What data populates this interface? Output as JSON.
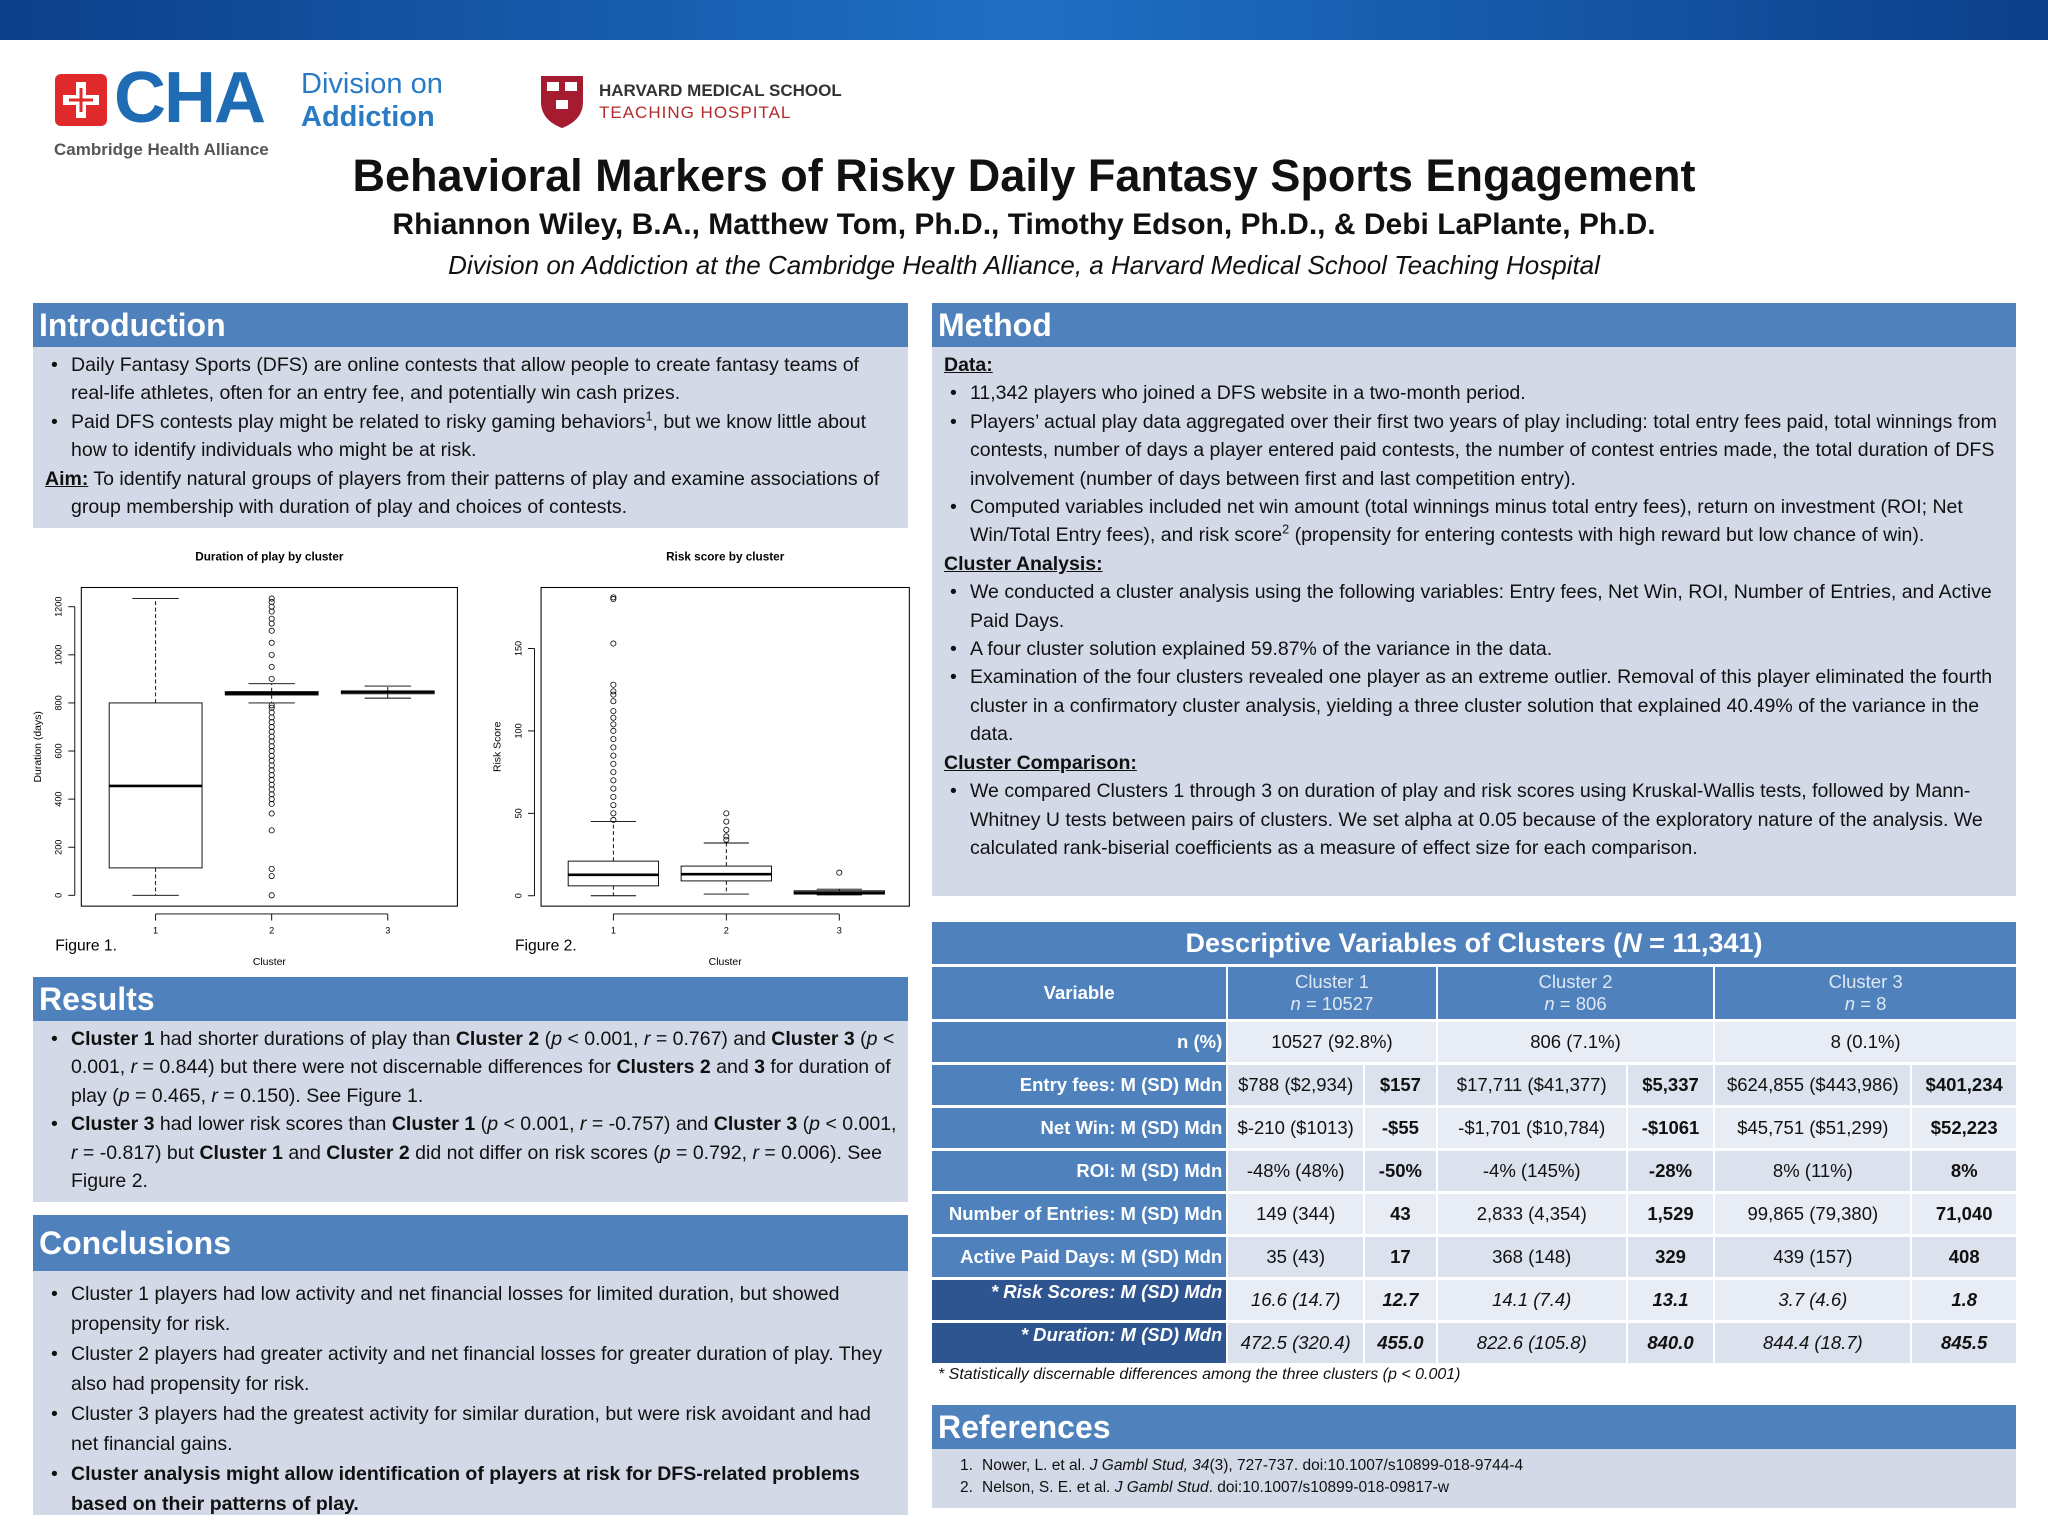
{
  "header": {
    "cha_mark": "CHA",
    "division_line1": "Division on",
    "division_line2": "Addiction",
    "cha_name": "Cambridge Health Alliance",
    "hms_line1": "HARVARD MEDICAL SCHOOL",
    "hms_line2": "TEACHING HOSPITAL",
    "title": "Behavioral Markers of Risky Daily Fantasy Sports Engagement",
    "authors": "Rhiannon Wiley, B.A., Matthew Tom, Ph.D., Timothy Edson, Ph.D., & Debi LaPlante, Ph.D.",
    "affiliation": "Division on Addiction at the Cambridge Health Alliance, a Harvard Medical School Teaching Hospital"
  },
  "introduction": {
    "heading": "Introduction",
    "items": [
      {
        "type": "bullet",
        "runs": [
          {
            "text": "Daily Fantasy Sports (DFS) are online contests that allow people to create fantasy teams of real-life athletes, often for an entry fee, and potentially win cash prizes."
          }
        ]
      },
      {
        "type": "bullet",
        "runs": [
          {
            "text": "Paid DFS contests play might be related to risky gaming behaviors"
          },
          {
            "text": "1",
            "style": "sup"
          },
          {
            "text": ", but we know little about how to identify individuals who might be at risk."
          }
        ]
      },
      {
        "type": "paragraph",
        "runs": [
          {
            "text": "Aim:",
            "style": "bu"
          },
          {
            "text": " To identify natural groups of players from their patterns of play and examine associations of group membership with duration of play and choices of contests."
          }
        ]
      }
    ]
  },
  "method": {
    "heading": "Method",
    "items": [
      {
        "type": "subheading",
        "runs": [
          {
            "text": "Data:"
          }
        ]
      },
      {
        "type": "bullet",
        "runs": [
          {
            "text": "11,342 players who joined a DFS website in a two-month period."
          }
        ]
      },
      {
        "type": "bullet",
        "runs": [
          {
            "text": "Players’ actual play data aggregated over their first two years of play including: total entry fees paid, total winnings from contests, number of days a player entered paid contests, the number of contest entries made, the total duration of DFS involvement (number of days between first and last competition entry)."
          }
        ]
      },
      {
        "type": "bullet",
        "runs": [
          {
            "text": "Computed variables included net win amount (total winnings minus total entry fees), return on investment (ROI; Net Win/Total Entry fees), and risk score"
          },
          {
            "text": "2",
            "style": "sup"
          },
          {
            "text": " (propensity for entering contests with high reward but low chance of win)."
          }
        ]
      },
      {
        "type": "subheading",
        "runs": [
          {
            "text": "Cluster Analysis:"
          }
        ]
      },
      {
        "type": "bullet",
        "runs": [
          {
            "text": "We conducted a cluster analysis using the following variables: Entry fees, Net Win, ROI, Number of Entries, and Active Paid Days."
          }
        ]
      },
      {
        "type": "bullet",
        "runs": [
          {
            "text": "A four cluster solution explained 59.87% of the variance in the data."
          }
        ]
      },
      {
        "type": "bullet",
        "runs": [
          {
            "text": "Examination of the four clusters revealed one player as an extreme outlier. Removal of this player eliminated the fourth cluster in a confirmatory cluster analysis, yielding a three cluster solution that explained 40.49% of the variance in the data."
          }
        ]
      },
      {
        "type": "subheading",
        "runs": [
          {
            "text": "Cluster Comparison:"
          }
        ]
      },
      {
        "type": "bullet",
        "runs": [
          {
            "text": "We compared Clusters 1 through 3 on duration of play and risk scores using Kruskal-Wallis tests, followed by Mann-Whitney U tests between pairs of clusters. We set alpha at 0.05 because of the exploratory nature of the analysis. We calculated rank-biserial coefficients as a measure of effect size for each comparison."
          }
        ]
      }
    ]
  },
  "results": {
    "heading": "Results",
    "items": [
      {
        "type": "bullet",
        "runs": [
          {
            "text": "Cluster 1",
            "style": "b"
          },
          {
            "text": " had shorter durations of play than "
          },
          {
            "text": "Cluster 2",
            "style": "b"
          },
          {
            "text": " ("
          },
          {
            "text": "p",
            "style": "i"
          },
          {
            "text": "  < 0.001, "
          },
          {
            "text": "r",
            "style": "i"
          },
          {
            "text": " = 0.767) and "
          },
          {
            "text": "Cluster 3",
            "style": "b"
          },
          {
            "text": " ("
          },
          {
            "text": "p",
            "style": "i"
          },
          {
            "text": " < 0.001, "
          },
          {
            "text": "r",
            "style": "i"
          },
          {
            "text": " = 0.844) but there were not discernable differences for "
          },
          {
            "text": "Clusters 2",
            "style": "b"
          },
          {
            "text": " and "
          },
          {
            "text": "3",
            "style": "b"
          },
          {
            "text": " for duration of play ("
          },
          {
            "text": "p",
            "style": "i"
          },
          {
            "text": " = 0.465, "
          },
          {
            "text": "r",
            "style": "i"
          },
          {
            "text": " = 0.150). See Figure 1."
          }
        ]
      },
      {
        "type": "bullet",
        "runs": [
          {
            "text": "Cluster 3",
            "style": "b"
          },
          {
            "text": " had lower risk scores than "
          },
          {
            "text": "Cluster 1",
            "style": "b"
          },
          {
            "text": " ("
          },
          {
            "text": "p",
            "style": "i"
          },
          {
            "text": " < 0.001, "
          },
          {
            "text": "r",
            "style": "i"
          },
          {
            "text": " = -0.757) and "
          },
          {
            "text": "Cluster 3",
            "style": "b"
          },
          {
            "text": " ("
          },
          {
            "text": "p",
            "style": "i"
          },
          {
            "text": " < 0.001, "
          },
          {
            "text": "r",
            "style": "i"
          },
          {
            "text": " = -0.817) but "
          },
          {
            "text": "Cluster 1",
            "style": "b"
          },
          {
            "text": " and "
          },
          {
            "text": "Cluster 2",
            "style": "b"
          },
          {
            "text": " did not differ on risk scores ("
          },
          {
            "text": "p",
            "style": "i"
          },
          {
            "text": " = 0.792, "
          },
          {
            "text": "r",
            "style": "i"
          },
          {
            "text": " = 0.006). See Figure 2."
          }
        ]
      }
    ]
  },
  "conclusions": {
    "heading": "Conclusions",
    "items": [
      {
        "type": "bullet",
        "runs": [
          {
            "text": "Cluster 1 players had low activity and net financial losses for limited duration, but showed propensity for risk."
          }
        ]
      },
      {
        "type": "bullet",
        "runs": [
          {
            "text": "Cluster 2 players had greater activity and net financial losses for greater duration of play. They also had propensity for risk."
          }
        ]
      },
      {
        "type": "bullet",
        "runs": [
          {
            "text": "Cluster 3 players had the greatest activity for similar duration, but were risk avoidant and had net financial gains."
          }
        ]
      },
      {
        "type": "bullet",
        "runs": [
          {
            "text": "Cluster analysis might allow identification of players at risk for DFS-related problems based on their patterns of play.",
            "style": "b"
          }
        ]
      }
    ]
  },
  "table": {
    "title": [
      {
        "text": "Descriptive Variables of Clusters ("
      },
      {
        "text": "N",
        "style": "i"
      },
      {
        "text": " = 11,341)"
      }
    ],
    "variable_heading": "Variable",
    "clusters": [
      {
        "name": "Cluster 1",
        "n": [
          {
            "text": "n",
            "style": "i"
          },
          {
            "text": " = 10527"
          }
        ]
      },
      {
        "name": "Cluster 2",
        "n": [
          {
            "text": "n",
            "style": "i"
          },
          {
            "text": " = 806"
          }
        ]
      },
      {
        "name": "Cluster 3",
        "n": [
          {
            "text": "n",
            "style": "i"
          },
          {
            "text": " = 8"
          }
        ]
      }
    ],
    "rows": [
      {
        "label": "n (%)",
        "style": "plain",
        "cells": [
          "10527 (92.8%)",
          "806 (7.1%)",
          "8 (0.1%)"
        ]
      },
      {
        "label": "Entry fees: M (SD) Mdn",
        "style": "regular",
        "cells": [
          "$788 ($2,934)",
          "$157",
          "$17,711 ($41,377)",
          "$5,337",
          "$624,855 ($443,986)",
          "$401,234"
        ]
      },
      {
        "label": "Net Win: M (SD) Mdn",
        "style": "regular",
        "cells": [
          "$-210 ($1013)",
          "-$55",
          "-$1,701 ($10,784)",
          "-$1061",
          "$45,751 ($51,299)",
          "$52,223"
        ]
      },
      {
        "label": "ROI: M (SD) Mdn",
        "style": "regular",
        "cells": [
          "-48% (48%)",
          "-50%",
          "-4% (145%)",
          "-28%",
          "8% (11%)",
          "8%"
        ]
      },
      {
        "label": "Number of Entries: M (SD) Mdn",
        "style": "regular",
        "cells": [
          "149 (344)",
          "43",
          "2,833 (4,354)",
          "1,529",
          "99,865 (79,380)",
          "71,040"
        ]
      },
      {
        "label": "Active Paid Days: M (SD) Mdn",
        "style": "regular",
        "cells": [
          "35 (43)",
          "17",
          "368 (148)",
          "329",
          "439 (157)",
          "408"
        ]
      },
      {
        "label": "* Risk Scores:  M (SD) Mdn",
        "style": "italic",
        "cells": [
          "16.6 (14.7)",
          "12.7",
          "14.1 (7.4)",
          "13.1",
          "3.7 (4.6)",
          "1.8"
        ]
      },
      {
        "label": "* Duration: M (SD) Mdn",
        "style": "italic",
        "cells": [
          "472.5 (320.4)",
          "455.0",
          "822.6 (105.8)",
          "840.0",
          "844.4 (18.7)",
          "845.5"
        ]
      }
    ],
    "footnote": "* Statistically discernable differences among the three clusters (p < 0.001)"
  },
  "references": {
    "heading": "References",
    "items": [
      {
        "type": "numbered",
        "number": "1.",
        "runs": [
          {
            "text": "Nower, L. et al. "
          },
          {
            "text": "J Gambl Stud, 34",
            "style": "i"
          },
          {
            "text": "(3), 727-737. doi:10.1007/s10899-018-9744-4"
          }
        ]
      },
      {
        "type": "numbered",
        "number": "2.",
        "runs": [
          {
            "text": "Nelson, S. E. et al. "
          },
          {
            "text": "J Gambl Stud",
            "style": "i"
          },
          {
            "text": ". doi:10.1007/s10899-018-09817-w"
          }
        ]
      }
    ]
  },
  "chart_data": [
    {
      "type": "box",
      "title": "Duration of play by cluster",
      "xlabel": "Cluster",
      "ylabel": "Duration (days)",
      "caption": "Figure 1.",
      "x": [
        1,
        2,
        3
      ],
      "xlim": [
        0.36,
        3.6
      ],
      "xticks": [
        1,
        2,
        3
      ],
      "ylim": [
        -45,
        1280
      ],
      "yticks": [
        0,
        200,
        400,
        600,
        800,
        1000,
        1200
      ],
      "boxes": [
        {
          "whislo": 0,
          "q1": 114,
          "med": 455,
          "q3": 800,
          "whishi": 1234,
          "fliers": []
        },
        {
          "whislo": 800,
          "q1": 833,
          "med": 840,
          "q3": 847,
          "whishi": 880,
          "fliers": [
            0,
            80,
            110,
            270,
            340,
            380,
            400,
            420,
            440,
            460,
            480,
            500,
            520,
            540,
            560,
            580,
            600,
            620,
            640,
            660,
            680,
            700,
            720,
            740,
            760,
            780,
            790,
            900,
            950,
            1000,
            1050,
            1100,
            1130,
            1150,
            1180,
            1200,
            1220,
            1234
          ]
        },
        {
          "whislo": 820,
          "q1": 838,
          "med": 845.5,
          "q3": 850,
          "whishi": 870,
          "fliers": []
        }
      ]
    },
    {
      "type": "box",
      "title": "Risk score by cluster",
      "xlabel": "Cluster",
      "ylabel": "Risk Score",
      "caption": "Figure 2.",
      "x": [
        1,
        2,
        3
      ],
      "xlim": [
        0.36,
        3.62
      ],
      "xticks": [
        1,
        2,
        3
      ],
      "ylim": [
        -6.3,
        187
      ],
      "yticks": [
        0,
        50,
        100,
        150
      ],
      "boxes": [
        {
          "whislo": 0,
          "q1": 6,
          "med": 12.7,
          "q3": 21,
          "whishi": 45,
          "fliers": [
            46,
            50,
            55,
            60,
            65,
            70,
            75,
            80,
            85,
            90,
            95,
            100,
            104,
            108,
            112,
            118,
            122,
            124,
            128,
            153,
            180,
            181
          ]
        },
        {
          "whislo": 1,
          "q1": 9,
          "med": 13.1,
          "q3": 18,
          "whishi": 32,
          "fliers": [
            34,
            36,
            40,
            45,
            50
          ]
        },
        {
          "whislo": 0.5,
          "q1": 1,
          "med": 1.8,
          "q3": 3,
          "whishi": 4,
          "fliers": [
            14
          ]
        }
      ]
    }
  ]
}
